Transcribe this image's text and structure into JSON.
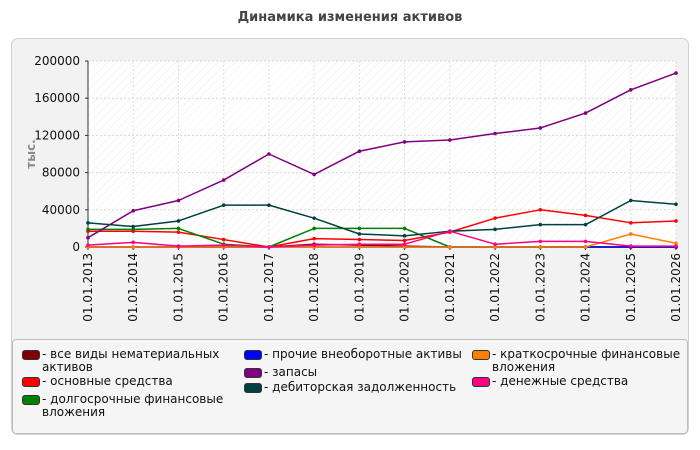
{
  "chart_data": {
    "type": "line",
    "title": "Динамика изменения активов",
    "ylabel": "тыс.",
    "ylim": [
      0,
      200000
    ],
    "yticks": [
      "0",
      "40000",
      "80000",
      "120000",
      "160000",
      "200000"
    ],
    "categories": [
      "01.01.2013",
      "01.01.2014",
      "01.01.2015",
      "01.01.2016",
      "01.01.2017",
      "01.01.2018",
      "01.01.2019",
      "01.01.2020",
      "01.01.2021",
      "01.01.2022",
      "01.01.2023",
      "01.01.2024",
      "01.01.2025",
      "01.01.2026"
    ],
    "series": [
      {
        "name": "- все виды нематериальных активов",
        "color": "#800000",
        "values": [
          0,
          0,
          0,
          0,
          0,
          3000,
          2000,
          1000,
          0,
          0,
          0,
          0,
          0,
          0
        ]
      },
      {
        "name": "- основные средства",
        "color": "#ff0000",
        "values": [
          17000,
          17000,
          16000,
          8000,
          0,
          9000,
          8000,
          7000,
          16000,
          31000,
          40000,
          34000,
          26000,
          28000
        ]
      },
      {
        "name": "- долгосрочные финансовые вложения",
        "color": "#008000",
        "values": [
          19000,
          19000,
          20000,
          3000,
          0,
          20000,
          20000,
          20000,
          0,
          0,
          0,
          0,
          0,
          0
        ]
      },
      {
        "name": "- прочие внеоборотные активы",
        "color": "#0000ff",
        "values": [
          0,
          0,
          0,
          0,
          0,
          0,
          0,
          0,
          0,
          0,
          0,
          0,
          0,
          0
        ]
      },
      {
        "name": "- запасы",
        "color": "#800080",
        "values": [
          10000,
          39000,
          50000,
          72000,
          100000,
          78000,
          103000,
          113000,
          115000,
          122000,
          128000,
          144000,
          169000,
          187000
        ]
      },
      {
        "name": "- дебиторская задолженность",
        "color": "#004040",
        "values": [
          26000,
          22000,
          28000,
          45000,
          45000,
          31000,
          14000,
          12000,
          17000,
          19000,
          24000,
          24000,
          50000,
          46000
        ]
      },
      {
        "name": "- краткосрочные финансовые вложения",
        "color": "#ff8000",
        "values": [
          0,
          0,
          0,
          0,
          0,
          0,
          0,
          0,
          0,
          0,
          0,
          0,
          14000,
          4000
        ]
      },
      {
        "name": "- денежные средства",
        "color": "#ff0080",
        "values": [
          2000,
          5000,
          1000,
          2000,
          0,
          2000,
          3000,
          3000,
          17000,
          3000,
          6000,
          6000,
          1000,
          1000
        ]
      }
    ],
    "grid": true,
    "legend_position": "bottom"
  }
}
